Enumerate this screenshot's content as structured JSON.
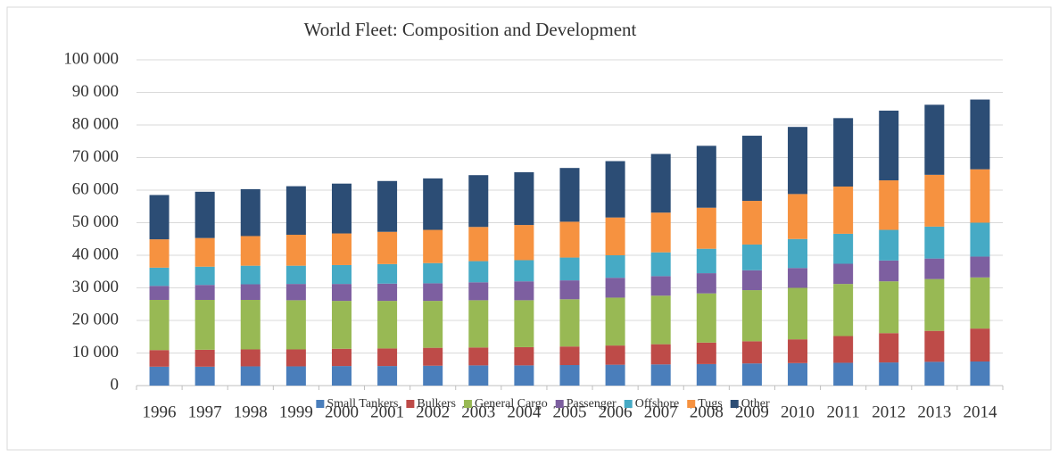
{
  "chart_data": {
    "type": "stacked_bar",
    "title": "World Fleet: Composition and Development",
    "categories": [
      "1996",
      "1997",
      "1998",
      "1999",
      "2000",
      "2001",
      "2002",
      "2003",
      "2004",
      "2005",
      "2006",
      "2007",
      "2008",
      "2009",
      "2010",
      "2011",
      "2012",
      "2013",
      "2014"
    ],
    "series": [
      {
        "name": "Small Tankers",
        "color": "#4a7ebb",
        "values": [
          5800,
          5800,
          5900,
          5900,
          6000,
          6000,
          6100,
          6200,
          6200,
          6300,
          6400,
          6500,
          6600,
          6800,
          6900,
          7000,
          7100,
          7300,
          7400
        ]
      },
      {
        "name": "Bulkers",
        "color": "#be4b48",
        "values": [
          5100,
          5200,
          5200,
          5200,
          5300,
          5400,
          5500,
          5500,
          5600,
          5700,
          5900,
          6200,
          6600,
          6800,
          7300,
          8200,
          9000,
          9500,
          10100
        ]
      },
      {
        "name": "General Cargo",
        "color": "#98b954",
        "values": [
          15400,
          15300,
          15200,
          15100,
          14700,
          14600,
          14400,
          14500,
          14400,
          14500,
          14700,
          14900,
          15100,
          15700,
          15800,
          16000,
          15900,
          15900,
          15700
        ]
      },
      {
        "name": "Passenger",
        "color": "#7d5fa0",
        "values": [
          4300,
          4600,
          4800,
          5000,
          5200,
          5300,
          5400,
          5500,
          5800,
          5800,
          6100,
          6000,
          6200,
          6100,
          6100,
          6200,
          6400,
          6300,
          6400
        ]
      },
      {
        "name": "Offshore",
        "color": "#46aac5",
        "values": [
          5600,
          5600,
          5700,
          5600,
          5800,
          6000,
          6200,
          6500,
          6500,
          7000,
          6900,
          7300,
          7500,
          7900,
          8900,
          9200,
          9400,
          9800,
          10400
        ]
      },
      {
        "name": "Tugs",
        "color": "#f69240",
        "values": [
          8700,
          8800,
          9100,
          9500,
          9700,
          9900,
          10200,
          10500,
          10800,
          11000,
          11600,
          12200,
          12600,
          13400,
          13800,
          14500,
          15200,
          15900,
          16400
        ]
      },
      {
        "name": "Other",
        "color": "#2c4d75",
        "values": [
          13600,
          14200,
          14400,
          14900,
          15300,
          15600,
          15800,
          15900,
          16200,
          16500,
          17300,
          18000,
          19000,
          20000,
          20600,
          21000,
          21400,
          21500,
          21400
        ]
      }
    ],
    "ylim": [
      0,
      100000
    ],
    "yticks": [
      0,
      {
        "value": 10000,
        "label": "10 000"
      },
      {
        "value": 20000,
        "label": "20 000"
      },
      {
        "value": 30000,
        "label": "30 000"
      },
      {
        "value": 40000,
        "label": "40 000"
      },
      {
        "value": 50000,
        "label": "50 000"
      },
      {
        "value": 60000,
        "label": "60 000"
      },
      {
        "value": 70000,
        "label": "70 000"
      },
      {
        "value": 80000,
        "label": "80 000"
      },
      {
        "value": 90000,
        "label": "90 000"
      },
      {
        "value": 100000,
        "label": "100 000"
      }
    ],
    "grid": true,
    "legend": "bottom"
  }
}
